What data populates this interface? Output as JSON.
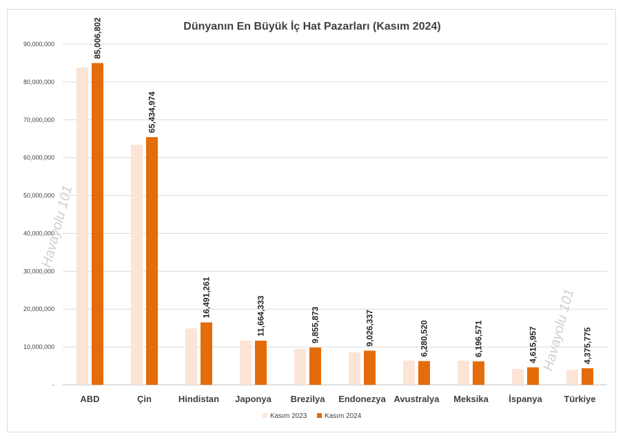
{
  "chart_data": {
    "type": "bar",
    "title": "Dünyanın En Büyük İç Hat Pazarları (Kasım 2024)",
    "categories": [
      "ABD",
      "Çin",
      "Hindistan",
      "Japonya",
      "Brezilya",
      "Endonezya",
      "Avustralya",
      "Meksika",
      "İspanya",
      "Türkiye"
    ],
    "series": [
      {
        "name": "Kasım 2023",
        "color": "#fce4d6",
        "values": [
          83800000,
          63400000,
          14900000,
          11700000,
          9500000,
          8600000,
          6400000,
          6400000,
          4200000,
          4000000
        ]
      },
      {
        "name": "Kasım 2024",
        "color": "#e46c0a",
        "values": [
          85006802,
          65434974,
          16491261,
          11664333,
          9855873,
          9026337,
          6280520,
          6196571,
          4615957,
          4375775
        ],
        "data_labels": [
          "85,006,802",
          "65,434,974",
          "16,491,261",
          "11,664,333",
          "9,855,873",
          "9,026,337",
          "6,280,520",
          "6,196,571",
          "4,615,957",
          "4,375,775"
        ]
      }
    ],
    "ylim": [
      0,
      90000000
    ],
    "yticks": [
      0,
      10000000,
      20000000,
      30000000,
      40000000,
      50000000,
      60000000,
      70000000,
      80000000,
      90000000
    ],
    "ytick_labels": [
      "-",
      "10,000,000",
      "20,000,000",
      "30,000,000",
      "40,000,000",
      "50,000,000",
      "60,000,000",
      "70,000,000",
      "80,000,000",
      "90,000,000"
    ],
    "grid": true,
    "legend": "bottom",
    "watermark": "Havayolu 101"
  }
}
